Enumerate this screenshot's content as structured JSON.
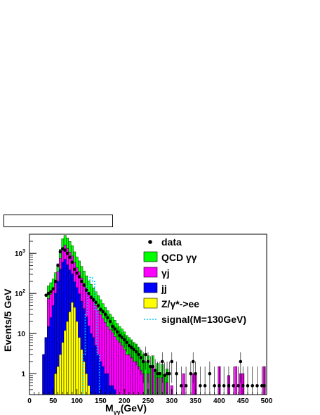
{
  "chart_data": {
    "type": "bar",
    "stacked": true,
    "bin_width": 5,
    "xlim": [
      0,
      500
    ],
    "ylim": [
      0.3,
      3000
    ],
    "yscale": "log",
    "grid": false,
    "legend_placement": "top-right",
    "title": "",
    "xlabel": "M",
    "xlabel_sub": "γγ",
    "xlabel_unit": "(GeV)",
    "ylabel": "Events/5 GeV",
    "x_ticks": [
      "0",
      "50",
      "100",
      "150",
      "200",
      "250",
      "300",
      "350",
      "400",
      "450",
      "500"
    ],
    "y_ticks": [
      {
        "base": "10",
        "exp": "3",
        "value": 1000
      },
      {
        "base": "10",
        "exp": "2",
        "value": 100
      },
      {
        "base": "10",
        "exp": "",
        "value": 10
      },
      {
        "base": "1",
        "exp": "",
        "value": 1
      }
    ],
    "colors": {
      "qcd": "#00ff00",
      "gj": "#ff00ff",
      "jj": "#0000ff",
      "zee": "#ffff00",
      "signal": "#00ccff",
      "data": "#000000"
    },
    "legend": [
      {
        "key": "data",
        "label": "data"
      },
      {
        "key": "qcd",
        "label": "QCD γγ"
      },
      {
        "key": "gj",
        "label": "γj"
      },
      {
        "key": "jj",
        "label": "jj"
      },
      {
        "key": "zee",
        "label": "Z/γ*->ee"
      },
      {
        "key": "signal",
        "label": "signal(M=130GeV)"
      }
    ],
    "series": [
      {
        "key": "zee",
        "x": [
          55,
          60,
          65,
          70,
          75,
          80,
          85,
          90,
          95,
          100,
          105,
          110,
          115,
          120,
          125
        ],
        "values": [
          1,
          1.5,
          3,
          6,
          12,
          20,
          35,
          60,
          45,
          20,
          8,
          4,
          2,
          1,
          0.5
        ]
      },
      {
        "key": "jj",
        "x": [
          30,
          35,
          40,
          45,
          50,
          55,
          60,
          65,
          70,
          75,
          80,
          85,
          90,
          95,
          100,
          105,
          110,
          115,
          120,
          125,
          130,
          135,
          140,
          145,
          150,
          155,
          160,
          165,
          170,
          175,
          180
        ],
        "values": [
          3,
          8,
          15,
          25,
          50,
          100,
          200,
          400,
          600,
          700,
          500,
          350,
          250,
          150,
          120,
          90,
          60,
          40,
          25,
          15,
          10,
          8,
          5,
          3,
          2,
          1.5,
          1,
          1,
          0.5,
          0.5,
          0.4
        ]
      },
      {
        "key": "gj",
        "x": [
          40,
          45,
          50,
          55,
          60,
          65,
          70,
          75,
          80,
          85,
          90,
          95,
          100,
          105,
          110,
          115,
          120,
          125,
          130,
          135,
          140,
          145,
          150,
          155,
          160,
          165,
          170,
          175,
          180,
          185,
          190,
          195,
          200,
          205,
          210,
          215,
          220,
          225,
          230,
          235,
          240,
          250,
          260,
          270,
          280,
          290,
          300,
          325,
          345,
          350,
          400,
          420,
          435,
          445,
          450,
          495
        ],
        "values": [
          60,
          70,
          80,
          100,
          150,
          350,
          700,
          900,
          800,
          700,
          550,
          400,
          300,
          250,
          180,
          140,
          110,
          80,
          70,
          55,
          45,
          35,
          28,
          22,
          18,
          14,
          12,
          10,
          8,
          7,
          6,
          5,
          4,
          3,
          3,
          2.5,
          2,
          2,
          1.5,
          1.2,
          1,
          1,
          1.5,
          0.8,
          0.8,
          0.6,
          0.5,
          1,
          1,
          1,
          1.5,
          0.9,
          1.5,
          1,
          1,
          1.5
        ]
      },
      {
        "key": "qcd",
        "x": [
          40,
          45,
          50,
          55,
          60,
          65,
          70,
          75,
          80,
          85,
          90,
          95,
          100,
          105,
          110,
          115,
          120,
          125,
          130,
          135,
          140,
          145,
          150,
          155,
          160,
          165,
          170,
          175,
          180,
          185,
          190,
          195,
          200,
          205,
          210,
          215,
          220,
          225,
          230,
          235,
          240,
          245,
          250,
          255,
          260,
          265,
          270,
          275,
          280,
          285,
          290
        ],
        "values": [
          80,
          90,
          100,
          130,
          200,
          500,
          1000,
          1200,
          1100,
          900,
          700,
          500,
          380,
          300,
          230,
          180,
          140,
          110,
          90,
          75,
          60,
          50,
          40,
          32,
          26,
          22,
          18,
          15,
          13,
          11,
          9,
          8,
          7,
          6,
          5,
          4.5,
          4,
          3.5,
          3,
          2.5,
          2,
          2,
          1.8,
          1.5,
          1.3,
          1.2,
          1,
          1,
          0.9,
          0.8,
          0.7
        ]
      },
      {
        "key": "signal",
        "x": [
          115,
          120,
          125,
          130,
          135,
          140,
          145
        ],
        "values": [
          3,
          30,
          150,
          250,
          200,
          40,
          3
        ]
      }
    ],
    "data_points": {
      "x": [
        35,
        40,
        45,
        50,
        55,
        60,
        65,
        70,
        75,
        80,
        85,
        90,
        95,
        100,
        105,
        110,
        115,
        120,
        125,
        130,
        135,
        140,
        145,
        150,
        155,
        160,
        165,
        170,
        175,
        180,
        185,
        190,
        195,
        200,
        205,
        210,
        215,
        220,
        225,
        230,
        235,
        240,
        245,
        250,
        255,
        260,
        265,
        270,
        275,
        280,
        285,
        290,
        295,
        300,
        310,
        320,
        330,
        340,
        345,
        350,
        360,
        370,
        380,
        390,
        400,
        410,
        420,
        430,
        440,
        445,
        450,
        460,
        470,
        480,
        490,
        495
      ],
      "y": [
        90,
        100,
        110,
        130,
        200,
        500,
        1100,
        1300,
        1200,
        1000,
        800,
        600,
        400,
        320,
        260,
        200,
        160,
        120,
        100,
        80,
        70,
        60,
        50,
        40,
        35,
        30,
        25,
        20,
        15,
        13,
        11,
        9,
        8,
        7,
        6,
        5,
        4.5,
        4,
        3.5,
        3,
        2.5,
        2,
        3,
        2,
        1.5,
        1.5,
        1.2,
        1,
        1,
        2,
        0.9,
        1,
        1,
        2,
        1,
        0.5,
        0.5,
        1,
        2,
        1,
        0.5,
        0.5,
        1,
        0.5,
        0.5,
        0.5,
        0.5,
        0.5,
        0.5,
        2,
        0.5,
        0.5,
        0.5,
        0.5,
        0.5,
        0.5
      ]
    }
  }
}
